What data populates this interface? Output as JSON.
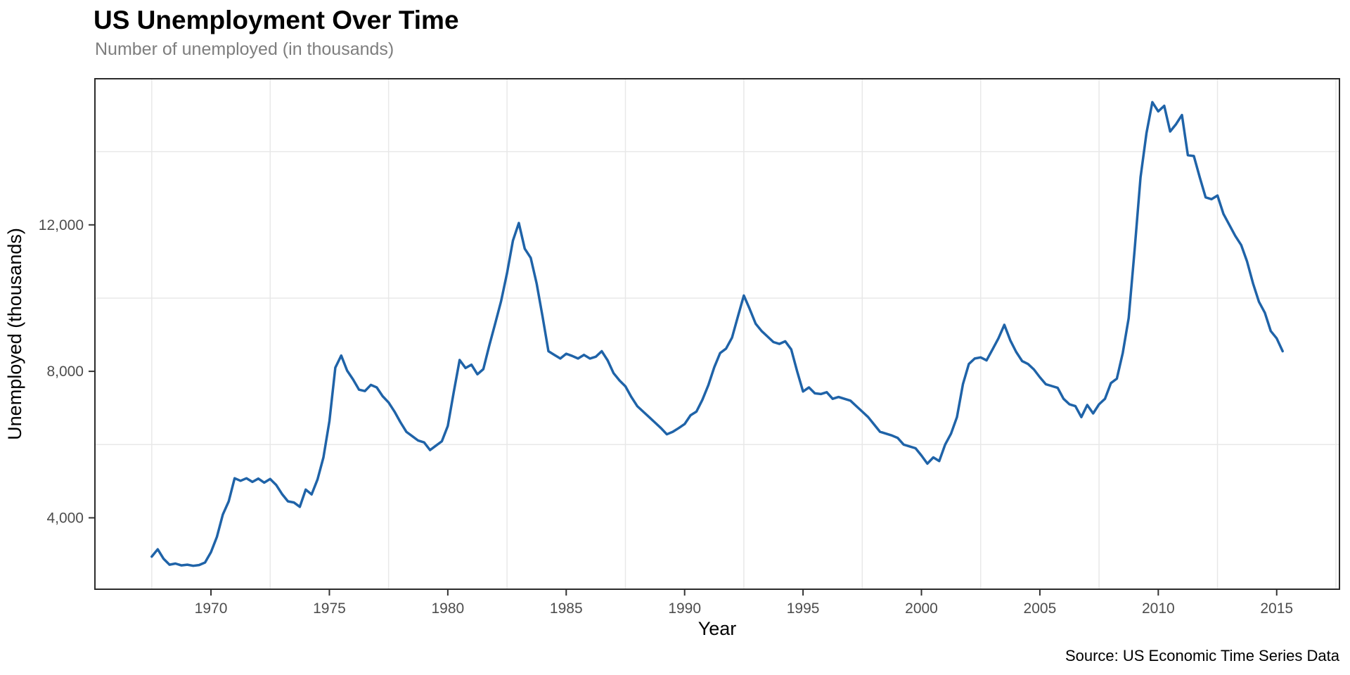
{
  "header": {
    "title": "US Unemployment Over Time",
    "subtitle": "Number of unemployed (in thousands)"
  },
  "caption": "Source: US Economic Time Series Data",
  "chart_data": {
    "type": "line",
    "title": "US Unemployment Over Time",
    "subtitle": "Number of unemployed (in thousands)",
    "xlabel": "Year",
    "ylabel": "Unemployed (thousands)",
    "caption": "Source: US Economic Time Series Data",
    "line_color": "#1f63a8",
    "grid_color": "#e8e8e8",
    "background": "#ffffff",
    "grid": "minor-only",
    "legend": "none",
    "x_domain": [
      1965.1,
      2017.65
    ],
    "y_domain": [
      2050,
      15990
    ],
    "x_ticks": [
      {
        "value": 1970,
        "label": "1970"
      },
      {
        "value": 1975,
        "label": "1975"
      },
      {
        "value": 1980,
        "label": "1980"
      },
      {
        "value": 1985,
        "label": "1985"
      },
      {
        "value": 1990,
        "label": "1990"
      },
      {
        "value": 1995,
        "label": "1995"
      },
      {
        "value": 2000,
        "label": "2000"
      },
      {
        "value": 2005,
        "label": "2005"
      },
      {
        "value": 2010,
        "label": "2010"
      },
      {
        "value": 2015,
        "label": "2015"
      }
    ],
    "y_ticks": [
      {
        "value": 4000,
        "label": "4,000"
      },
      {
        "value": 8000,
        "label": "8,000"
      },
      {
        "value": 12000,
        "label": "12,000"
      }
    ],
    "x_gridlines": [
      1967.5,
      1972.5,
      1977.5,
      1982.5,
      1987.5,
      1992.5,
      1997.5,
      2002.5,
      2007.5,
      2012.5,
      2017.5
    ],
    "y_gridlines": [
      6000,
      10000,
      14000
    ],
    "series": [
      {
        "name": "unemploy",
        "points": [
          [
            1967.5,
            2940
          ],
          [
            1967.75,
            3140
          ],
          [
            1968.0,
            2880
          ],
          [
            1968.25,
            2720
          ],
          [
            1968.5,
            2750
          ],
          [
            1968.75,
            2700
          ],
          [
            1969.0,
            2720
          ],
          [
            1969.25,
            2690
          ],
          [
            1969.5,
            2710
          ],
          [
            1969.75,
            2780
          ],
          [
            1970.0,
            3060
          ],
          [
            1970.25,
            3480
          ],
          [
            1970.5,
            4090
          ],
          [
            1970.75,
            4450
          ],
          [
            1971.0,
            5080
          ],
          [
            1971.25,
            5010
          ],
          [
            1971.5,
            5080
          ],
          [
            1971.75,
            4980
          ],
          [
            1972.0,
            5070
          ],
          [
            1972.25,
            4960
          ],
          [
            1972.5,
            5060
          ],
          [
            1972.75,
            4900
          ],
          [
            1973.0,
            4650
          ],
          [
            1973.25,
            4450
          ],
          [
            1973.5,
            4420
          ],
          [
            1973.75,
            4300
          ],
          [
            1974.0,
            4770
          ],
          [
            1974.25,
            4640
          ],
          [
            1974.5,
            5050
          ],
          [
            1974.75,
            5650
          ],
          [
            1975.0,
            6640
          ],
          [
            1975.25,
            8100
          ],
          [
            1975.5,
            8430
          ],
          [
            1975.75,
            8020
          ],
          [
            1976.0,
            7780
          ],
          [
            1976.25,
            7500
          ],
          [
            1976.5,
            7460
          ],
          [
            1976.75,
            7630
          ],
          [
            1977.0,
            7560
          ],
          [
            1977.25,
            7320
          ],
          [
            1977.5,
            7150
          ],
          [
            1977.75,
            6900
          ],
          [
            1978.0,
            6610
          ],
          [
            1978.25,
            6350
          ],
          [
            1978.5,
            6230
          ],
          [
            1978.75,
            6110
          ],
          [
            1979.0,
            6060
          ],
          [
            1979.25,
            5850
          ],
          [
            1979.5,
            5970
          ],
          [
            1979.75,
            6090
          ],
          [
            1980.0,
            6510
          ],
          [
            1980.25,
            7430
          ],
          [
            1980.5,
            8310
          ],
          [
            1980.75,
            8090
          ],
          [
            1981.0,
            8180
          ],
          [
            1981.25,
            7920
          ],
          [
            1981.5,
            8060
          ],
          [
            1981.75,
            8700
          ],
          [
            1982.0,
            9300
          ],
          [
            1982.25,
            9910
          ],
          [
            1982.5,
            10680
          ],
          [
            1982.75,
            11570
          ],
          [
            1983.0,
            12050
          ],
          [
            1983.25,
            11350
          ],
          [
            1983.5,
            11100
          ],
          [
            1983.75,
            10400
          ],
          [
            1984.0,
            9500
          ],
          [
            1984.25,
            8550
          ],
          [
            1984.5,
            8450
          ],
          [
            1984.75,
            8350
          ],
          [
            1985.0,
            8480
          ],
          [
            1985.25,
            8420
          ],
          [
            1985.5,
            8350
          ],
          [
            1985.75,
            8450
          ],
          [
            1986.0,
            8350
          ],
          [
            1986.25,
            8400
          ],
          [
            1986.5,
            8550
          ],
          [
            1986.75,
            8300
          ],
          [
            1987.0,
            7950
          ],
          [
            1987.25,
            7750
          ],
          [
            1987.5,
            7590
          ],
          [
            1987.75,
            7300
          ],
          [
            1988.0,
            7050
          ],
          [
            1988.25,
            6900
          ],
          [
            1988.5,
            6750
          ],
          [
            1988.75,
            6600
          ],
          [
            1989.0,
            6450
          ],
          [
            1989.25,
            6280
          ],
          [
            1989.5,
            6350
          ],
          [
            1989.75,
            6450
          ],
          [
            1990.0,
            6560
          ],
          [
            1990.25,
            6800
          ],
          [
            1990.5,
            6900
          ],
          [
            1990.75,
            7220
          ],
          [
            1991.0,
            7620
          ],
          [
            1991.25,
            8110
          ],
          [
            1991.5,
            8500
          ],
          [
            1991.75,
            8620
          ],
          [
            1992.0,
            8920
          ],
          [
            1992.25,
            9500
          ],
          [
            1992.5,
            10070
          ],
          [
            1992.75,
            9700
          ],
          [
            1993.0,
            9300
          ],
          [
            1993.25,
            9100
          ],
          [
            1993.5,
            8950
          ],
          [
            1993.75,
            8800
          ],
          [
            1994.0,
            8750
          ],
          [
            1994.25,
            8820
          ],
          [
            1994.5,
            8600
          ],
          [
            1994.75,
            8000
          ],
          [
            1995.0,
            7450
          ],
          [
            1995.25,
            7560
          ],
          [
            1995.5,
            7400
          ],
          [
            1995.75,
            7380
          ],
          [
            1996.0,
            7430
          ],
          [
            1996.25,
            7250
          ],
          [
            1996.5,
            7300
          ],
          [
            1996.75,
            7250
          ],
          [
            1997.0,
            7200
          ],
          [
            1997.25,
            7050
          ],
          [
            1997.5,
            6900
          ],
          [
            1997.75,
            6750
          ],
          [
            1998.0,
            6550
          ],
          [
            1998.25,
            6350
          ],
          [
            1998.5,
            6300
          ],
          [
            1998.75,
            6250
          ],
          [
            1999.0,
            6180
          ],
          [
            1999.25,
            6000
          ],
          [
            1999.5,
            5950
          ],
          [
            1999.75,
            5900
          ],
          [
            2000.0,
            5700
          ],
          [
            2000.25,
            5480
          ],
          [
            2000.5,
            5650
          ],
          [
            2000.75,
            5550
          ],
          [
            2001.0,
            6000
          ],
          [
            2001.25,
            6300
          ],
          [
            2001.5,
            6750
          ],
          [
            2001.75,
            7650
          ],
          [
            2002.0,
            8200
          ],
          [
            2002.25,
            8350
          ],
          [
            2002.5,
            8380
          ],
          [
            2002.75,
            8300
          ],
          [
            2003.0,
            8600
          ],
          [
            2003.25,
            8900
          ],
          [
            2003.5,
            9270
          ],
          [
            2003.75,
            8850
          ],
          [
            2004.0,
            8530
          ],
          [
            2004.25,
            8280
          ],
          [
            2004.5,
            8200
          ],
          [
            2004.75,
            8050
          ],
          [
            2005.0,
            7840
          ],
          [
            2005.25,
            7650
          ],
          [
            2005.5,
            7600
          ],
          [
            2005.75,
            7550
          ],
          [
            2006.0,
            7250
          ],
          [
            2006.25,
            7100
          ],
          [
            2006.5,
            7050
          ],
          [
            2006.75,
            6750
          ],
          [
            2007.0,
            7080
          ],
          [
            2007.25,
            6850
          ],
          [
            2007.5,
            7100
          ],
          [
            2007.75,
            7250
          ],
          [
            2008.0,
            7680
          ],
          [
            2008.25,
            7800
          ],
          [
            2008.5,
            8500
          ],
          [
            2008.75,
            9450
          ],
          [
            2009.0,
            11300
          ],
          [
            2009.25,
            13300
          ],
          [
            2009.5,
            14500
          ],
          [
            2009.75,
            15350
          ],
          [
            2010.0,
            15100
          ],
          [
            2010.25,
            15250
          ],
          [
            2010.5,
            14550
          ],
          [
            2010.75,
            14750
          ],
          [
            2011.0,
            15000
          ],
          [
            2011.25,
            13900
          ],
          [
            2011.5,
            13880
          ],
          [
            2011.75,
            13300
          ],
          [
            2012.0,
            12750
          ],
          [
            2012.25,
            12700
          ],
          [
            2012.5,
            12800
          ],
          [
            2012.75,
            12300
          ],
          [
            2013.0,
            12000
          ],
          [
            2013.25,
            11700
          ],
          [
            2013.5,
            11450
          ],
          [
            2013.75,
            11000
          ],
          [
            2014.0,
            10400
          ],
          [
            2014.25,
            9900
          ],
          [
            2014.5,
            9600
          ],
          [
            2014.75,
            9100
          ],
          [
            2015.0,
            8900
          ],
          [
            2015.25,
            8550
          ]
        ]
      }
    ]
  }
}
